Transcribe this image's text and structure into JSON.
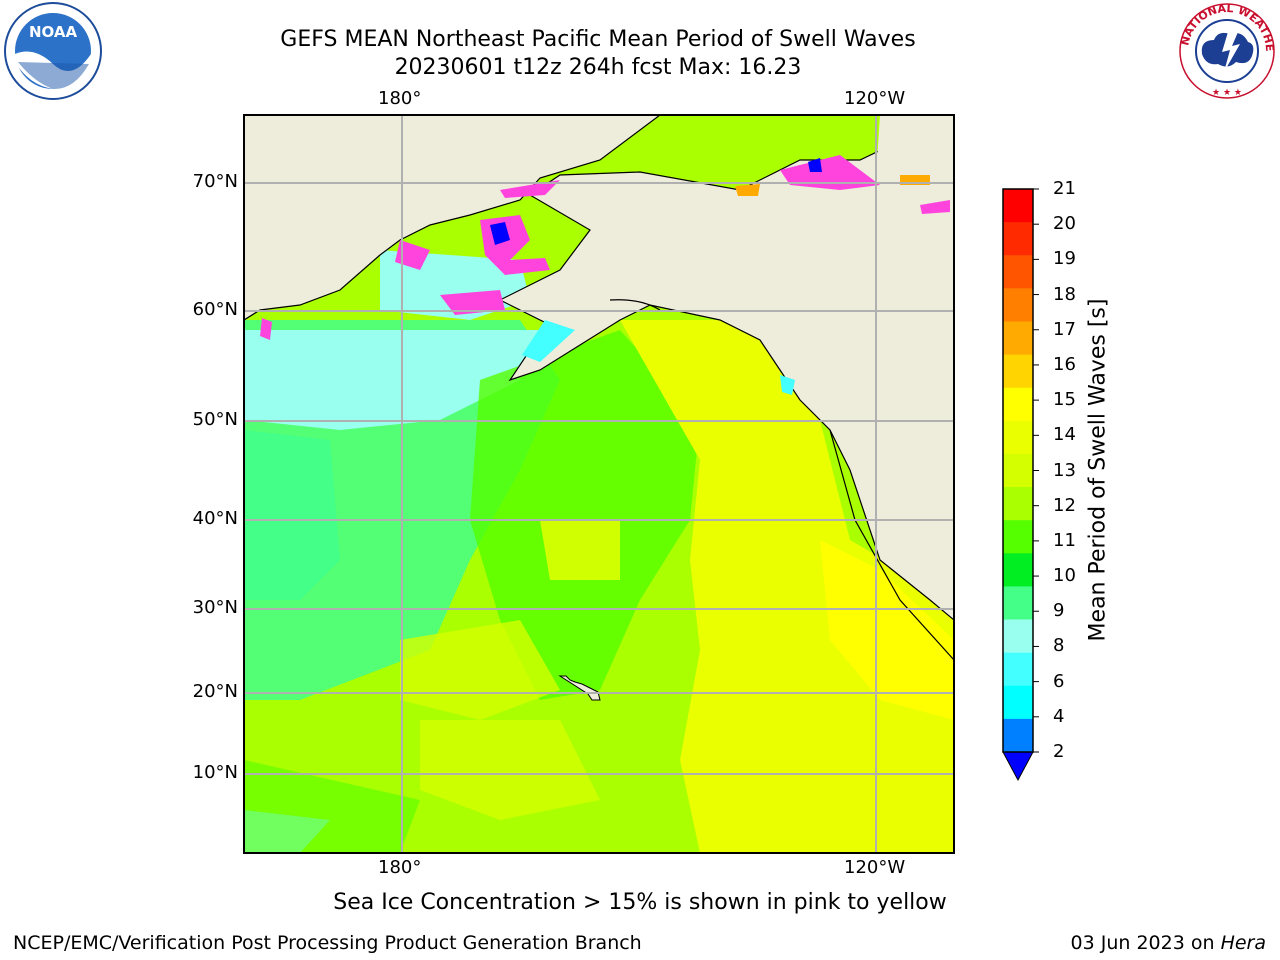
{
  "title": {
    "line1": "GEFS MEAN Northeast Pacific Mean Period of Swell Waves",
    "line2": "20230601 t12z 264h fcst   Max: 16.23"
  },
  "axes": {
    "top_lon": [
      "180°",
      "120°W"
    ],
    "bottom_lon": [
      "180°",
      "120°W"
    ],
    "lat": [
      "70°N",
      "60°N",
      "50°N",
      "40°N",
      "30°N",
      "20°N",
      "10°N"
    ]
  },
  "colorbar": {
    "label": "Mean Period of Swell Waves [s]",
    "ticks": [
      "21",
      "20",
      "19",
      "18",
      "17",
      "16",
      "15",
      "14",
      "13",
      "12",
      "11",
      "10",
      "9",
      "8",
      "6",
      "4",
      "2"
    ],
    "colors": [
      "#ff0000",
      "#ff2a00",
      "#ff5500",
      "#ff8000",
      "#ffaa00",
      "#ffd400",
      "#ffff00",
      "#eaff00",
      "#d4ff00",
      "#aaff00",
      "#55ff00",
      "#00ee22",
      "#44ff88",
      "#99ffee",
      "#44ffff",
      "#00ffff",
      "#0080ff"
    ],
    "under_color": "#0000ff"
  },
  "note": "Sea Ice Concentration > 15% is shown in pink to yellow",
  "footer": {
    "left": "NCEP/EMC/Verification Post Processing Product Generation Branch",
    "right_date": "03 Jun 2023 on ",
    "right_host": "Hera"
  },
  "logos": {
    "left": "NOAA",
    "right_ring": "NATIONAL WEATHER SERVICE"
  },
  "colors": {
    "land": "#eeeddc",
    "ocean_high": "#ffff00",
    "ocean_mid": "#aaff00",
    "ocean_low": "#44ff88",
    "ocean_cyan": "#99ffee",
    "ice": "#ff44dd"
  }
}
